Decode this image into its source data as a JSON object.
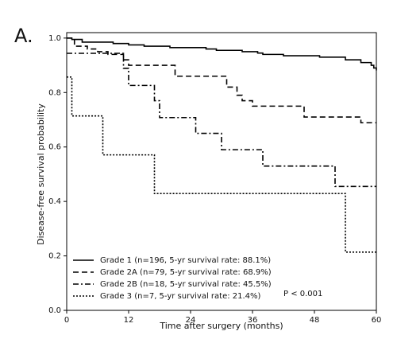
{
  "panel_label": "A.",
  "chart_data": {
    "type": "step",
    "xlabel": "Time after surgery (months)",
    "ylabel": "Disease-free survival probability",
    "xlim": [
      0,
      60
    ],
    "ylim": [
      0,
      1.02
    ],
    "xticks": [
      0,
      12,
      24,
      36,
      48,
      60
    ],
    "yticks": [
      {
        "value": 0,
        "label": "0.0"
      },
      0.2,
      0.4,
      0.6,
      0.8,
      {
        "value": 1,
        "label": "1.0"
      }
    ],
    "legend": "lower left",
    "annotation": "P < 0.001",
    "series": [
      {
        "name": "Grade 1 (n=196, 5-yr survival rate: 88.1%)",
        "color": "#000000",
        "dash": "none",
        "x": [
          0,
          1,
          3,
          9,
          12,
          15,
          20,
          27,
          29,
          34,
          37,
          38,
          42,
          49,
          54,
          57,
          59,
          59.5,
          60
        ],
        "values": [
          1,
          0.995,
          0.985,
          0.98,
          0.975,
          0.97,
          0.965,
          0.96,
          0.955,
          0.95,
          0.945,
          0.94,
          0.935,
          0.93,
          0.92,
          0.91,
          0.9,
          0.89,
          0.881
        ]
      },
      {
        "name": "Grade 2A (n=79, 5-yr survival rate: 68.9%)",
        "color": "#000000",
        "dash": "7,4",
        "x": [
          0,
          1.5,
          4,
          6,
          8,
          11,
          12,
          21,
          31,
          33,
          34,
          36,
          46,
          57,
          60
        ],
        "values": [
          1,
          0.97,
          0.96,
          0.95,
          0.94,
          0.92,
          0.9,
          0.86,
          0.82,
          0.79,
          0.77,
          0.75,
          0.71,
          0.689,
          0.689
        ]
      },
      {
        "name": "Grade 2B (n=18, 5-yr survival rate: 45.5%)",
        "color": "#000000",
        "dash": "7,3,2,3",
        "x": [
          0,
          11,
          12,
          17,
          18,
          25,
          30,
          38,
          52,
          60
        ],
        "values": [
          0.944,
          0.889,
          0.826,
          0.77,
          0.708,
          0.65,
          0.59,
          0.53,
          0.455,
          0.455
        ]
      },
      {
        "name": "Grade 3 (n=7, 5-yr survival rate: 21.4%)",
        "color": "#000000",
        "dash": "2,2",
        "x": [
          0,
          1,
          7,
          17,
          54,
          60
        ],
        "values": [
          0.857,
          0.714,
          0.571,
          0.429,
          0.214,
          0.214
        ]
      }
    ]
  }
}
